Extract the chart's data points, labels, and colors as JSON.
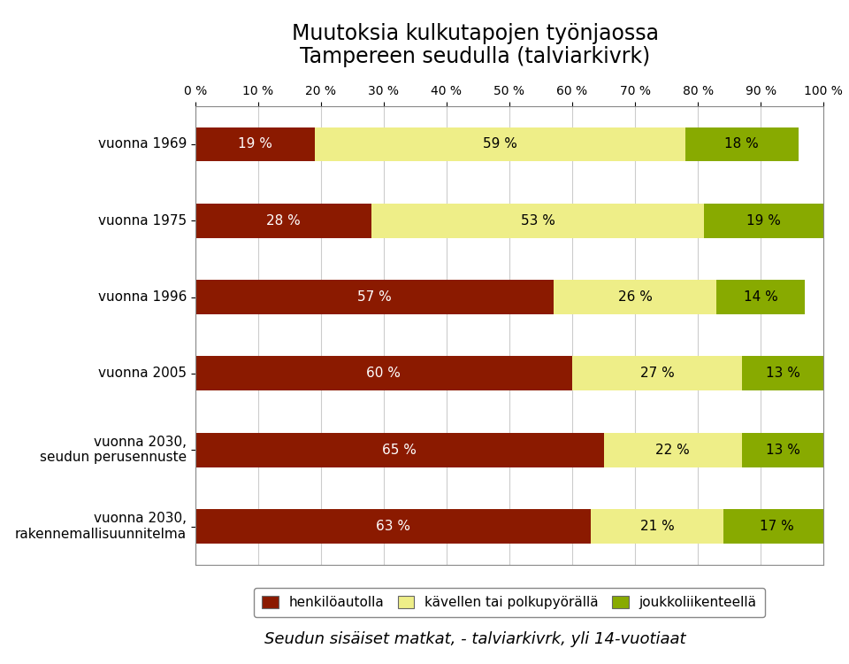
{
  "title_line1": "Muutoksia kulkutapojen työnjaossa",
  "title_line2": "Tampereen seudulla (talviarkivrk)",
  "subtitle": "Seudun sisäiset matkat, - talviarkivrk, yli 14-vuotiaat",
  "categories": [
    "vuonna 1969",
    "vuonna 1975",
    "vuonna 1996",
    "vuonna 2005",
    "vuonna 2030,\nseudun perusennuste",
    "vuonna 2030,\nrakennemallisuunnitelma"
  ],
  "series": {
    "henkilöautolla": [
      19,
      28,
      57,
      60,
      65,
      63
    ],
    "kävellen tai polkupyörällä": [
      59,
      53,
      26,
      27,
      22,
      21
    ],
    "joukkoliikenteellä": [
      18,
      19,
      14,
      13,
      13,
      17
    ]
  },
  "bar_labels": {
    "henkilöautolla": [
      "19 %",
      "28 %",
      "57 %",
      "60 %",
      "65 %",
      "63 %"
    ],
    "kävellen tai polkupyörällä": [
      "59 %",
      "53 %",
      "26 %",
      "27 %",
      "22 %",
      "21 %"
    ],
    "joukkoliikenteellä": [
      "18 %",
      "19 %",
      "14 %",
      "13 %",
      "13 %",
      "17 %"
    ]
  },
  "colors": {
    "henkilöautolla": "#8B1A00",
    "kävellen tai polkupyörällä": "#EEEE88",
    "joukkoliikenteellä": "#88AA00"
  },
  "text_colors": {
    "henkilöautolla": "#FFFFFF",
    "kävellen tai polkupyörällä": "#000000",
    "joukkoliikenteellä": "#000000"
  },
  "legend_labels": [
    "henkilöautolla",
    "kävellen tai polkupyörällä",
    "joukkoliikenteellä"
  ],
  "xlim": [
    0,
    100
  ],
  "xtick_values": [
    0,
    10,
    20,
    30,
    40,
    50,
    60,
    70,
    80,
    90,
    100
  ],
  "xtick_labels": [
    "0 %",
    "10 %",
    "20 %",
    "30 %",
    "40 %",
    "50 %",
    "60 %",
    "70 %",
    "80 %",
    "90 %",
    "100 %"
  ],
  "background_color": "#FFFFFF",
  "bar_height": 0.45,
  "label_fontsize": 11,
  "tick_fontsize": 10,
  "title_fontsize": 17,
  "subtitle_fontsize": 13,
  "legend_fontsize": 11,
  "category_fontsize": 11,
  "grid_color": "#CCCCCC",
  "spine_color": "#888888"
}
